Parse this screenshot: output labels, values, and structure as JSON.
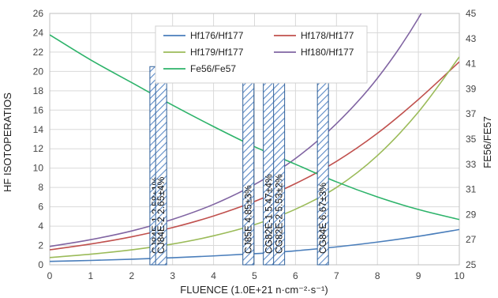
{
  "chart_data": {
    "type": "line",
    "xlabel": "FLUENCE (1.0E+21 n·cm⁻²·s⁻¹)",
    "ylabel_left": "HF ISOTOPERATIOS",
    "ylabel_right": "FE56/FE57",
    "xlim": [
      0,
      10
    ],
    "ylim_left": [
      0,
      26
    ],
    "ylim_right": [
      25,
      45
    ],
    "x_ticks": [
      0,
      1,
      2,
      3,
      4,
      5,
      6,
      7,
      8,
      9,
      10
    ],
    "y_left_ticks": [
      0,
      2,
      4,
      6,
      8,
      10,
      12,
      14,
      16,
      18,
      20,
      22,
      24,
      26
    ],
    "y_right_ticks": [
      25,
      27,
      29,
      31,
      33,
      35,
      37,
      39,
      41,
      43,
      45
    ],
    "grid": true,
    "legend_position": "top-center",
    "x": [
      0,
      1,
      2,
      3,
      4,
      5,
      6,
      7,
      8,
      9,
      10
    ],
    "series": [
      {
        "name": "Hf176/Hf177",
        "axis": "left",
        "color": "#4a7ebb",
        "values": [
          0.35,
          0.45,
          0.58,
          0.73,
          0.92,
          1.15,
          1.45,
          1.85,
          2.35,
          2.95,
          3.65
        ]
      },
      {
        "name": "Hf178/Hf177",
        "axis": "left",
        "color": "#c0504d",
        "values": [
          1.55,
          2.15,
          2.9,
          3.85,
          5.05,
          6.55,
          8.4,
          10.7,
          13.6,
          17.1,
          21.0
        ]
      },
      {
        "name": "Hf179/Hf177",
        "axis": "left",
        "color": "#9bbb59",
        "values": [
          0.75,
          1.1,
          1.55,
          2.15,
          3.0,
          4.15,
          5.75,
          8.0,
          11.3,
          15.8,
          21.5
        ]
      },
      {
        "name": "Hf180/Hf177",
        "axis": "left",
        "color": "#8064a2",
        "values": [
          1.9,
          2.6,
          3.5,
          4.7,
          6.25,
          8.3,
          11.0,
          14.6,
          19.3,
          25.5,
          33.5
        ]
      },
      {
        "name": "Fe56/Fe57",
        "axis": "right",
        "color": "#2db36a",
        "values": [
          43.3,
          41.3,
          39.5,
          37.7,
          36.0,
          34.4,
          33.0,
          31.6,
          30.4,
          29.4,
          28.6
        ]
      }
    ],
    "samples": [
      {
        "label": "CJ84E-1 2.58±1%",
        "x": 2.58,
        "height": 20.5
      },
      {
        "label": "CJ84E-2 2.65±4%",
        "x": 2.72,
        "height": 20.5
      },
      {
        "label": "CJ85E 4.85±3%",
        "x": 4.85,
        "height": 20.5
      },
      {
        "label": "CG82E-1 5.47±4%",
        "x": 5.35,
        "height": 20.5
      },
      {
        "label": "CG82E-2 5.53±2%",
        "x": 5.6,
        "height": 20.5
      },
      {
        "label": "CG84E 6.67±3%",
        "x": 6.67,
        "height": 20.5
      }
    ]
  }
}
